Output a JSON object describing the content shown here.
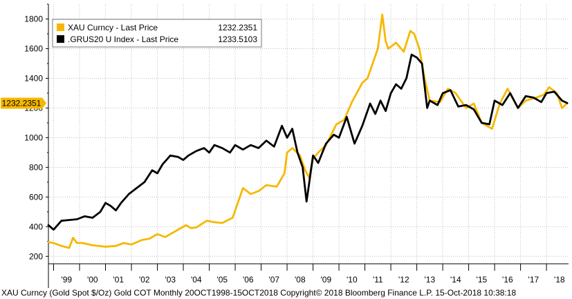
{
  "chart_data": {
    "type": "line",
    "title": "XAU Curncy (Gold Spot $/Oz) Gold COT Monthly 20OCT1998-15OCT2018",
    "ylim": [
      150,
      1900
    ],
    "y_ticks": [
      200,
      400,
      600,
      800,
      1000,
      1200,
      1400,
      1600,
      1800
    ],
    "y_tick_labels": [
      "200",
      "400",
      "600",
      "800",
      "1000",
      "1200",
      "1400",
      "1600",
      "1800"
    ],
    "x_tick_labels": [
      "'99",
      "'00",
      "'01",
      "'02",
      "'03",
      "'04",
      "'05",
      "'06",
      "'07",
      "'08",
      "'09",
      "'10",
      "'11",
      "'12",
      "'13",
      "'14",
      "'15",
      "'16",
      "'17",
      "'18"
    ],
    "x_range": [
      1998.8,
      2018.85
    ],
    "legend": [
      {
        "name": "XAU Curncy - Last Price",
        "value": "1232.2351",
        "color": "#f5b800"
      },
      {
        "name": ".GRUS20 U Index - Last Price",
        "value": "1233.5103",
        "color": "#000000"
      }
    ],
    "last_value_label": "1232.2351",
    "series": [
      {
        "name": "XAU Curncy - Last Price",
        "color": "#f5b800",
        "x": [
          1998.8,
          1999.0,
          1999.3,
          1999.6,
          1999.75,
          1999.9,
          2000.1,
          2000.5,
          2001.0,
          2001.4,
          2001.7,
          2002.0,
          2002.4,
          2002.7,
          2003.0,
          2003.3,
          2003.6,
          2003.9,
          2004.1,
          2004.3,
          2004.5,
          2004.9,
          2005.2,
          2005.5,
          2005.9,
          2006.1,
          2006.3,
          2006.6,
          2006.9,
          2007.2,
          2007.6,
          2007.9,
          2008.0,
          2008.2,
          2008.5,
          2008.7,
          2008.85,
          2009.0,
          2009.2,
          2009.5,
          2009.9,
          2010.2,
          2010.5,
          2010.9,
          2011.1,
          2011.3,
          2011.5,
          2011.67,
          2011.8,
          2011.9,
          2012.2,
          2012.5,
          2012.75,
          2012.9,
          2013.1,
          2013.3,
          2013.5,
          2013.9,
          2014.2,
          2014.5,
          2014.9,
          2015.2,
          2015.5,
          2015.9,
          2016.2,
          2016.5,
          2016.9,
          2017.2,
          2017.6,
          2017.9,
          2018.1,
          2018.4,
          2018.6,
          2018.8
        ],
        "values": [
          296,
          290,
          270,
          257,
          325,
          290,
          290,
          275,
          265,
          270,
          290,
          280,
          310,
          320,
          350,
          330,
          360,
          390,
          410,
          390,
          395,
          440,
          430,
          425,
          460,
          560,
          660,
          620,
          640,
          680,
          670,
          760,
          900,
          930,
          880,
          780,
          730,
          860,
          900,
          950,
          1090,
          1120,
          1240,
          1370,
          1400,
          1500,
          1600,
          1830,
          1650,
          1600,
          1640,
          1580,
          1720,
          1700,
          1600,
          1400,
          1250,
          1240,
          1330,
          1300,
          1200,
          1230,
          1100,
          1060,
          1230,
          1330,
          1200,
          1250,
          1270,
          1290,
          1340,
          1300,
          1200,
          1232
        ]
      },
      {
        "name": ".GRUS20 U Index - Last Price",
        "color": "#000000",
        "x": [
          1998.8,
          1999.0,
          1999.3,
          1999.6,
          1999.9,
          2000.2,
          2000.5,
          2000.8,
          2001.0,
          2001.2,
          2001.4,
          2001.6,
          2001.9,
          2002.2,
          2002.5,
          2002.8,
          2003.0,
          2003.2,
          2003.5,
          2003.8,
          2004.0,
          2004.2,
          2004.5,
          2004.8,
          2005.0,
          2005.2,
          2005.5,
          2005.8,
          2006.0,
          2006.3,
          2006.6,
          2006.9,
          2007.2,
          2007.5,
          2007.8,
          2008.0,
          2008.2,
          2008.4,
          2008.6,
          2008.75,
          2008.85,
          2009.0,
          2009.2,
          2009.5,
          2009.8,
          2010.0,
          2010.3,
          2010.6,
          2010.9,
          2011.2,
          2011.4,
          2011.6,
          2011.8,
          2012.0,
          2012.2,
          2012.4,
          2012.6,
          2012.8,
          2013.0,
          2013.2,
          2013.4,
          2013.5,
          2013.8,
          2014.0,
          2014.3,
          2014.6,
          2014.9,
          2015.2,
          2015.5,
          2015.8,
          2016.0,
          2016.3,
          2016.6,
          2016.9,
          2017.2,
          2017.5,
          2017.8,
          2018.0,
          2018.3,
          2018.6,
          2018.8
        ],
        "values": [
          410,
          380,
          440,
          445,
          450,
          470,
          460,
          500,
          560,
          540,
          510,
          560,
          620,
          660,
          700,
          780,
          760,
          820,
          880,
          870,
          850,
          880,
          910,
          930,
          900,
          950,
          930,
          900,
          950,
          920,
          950,
          930,
          980,
          940,
          1080,
          1000,
          1060,
          900,
          800,
          570,
          690,
          880,
          830,
          960,
          1020,
          1000,
          1140,
          960,
          1080,
          1230,
          1160,
          1250,
          1180,
          1300,
          1360,
          1330,
          1400,
          1560,
          1540,
          1500,
          1200,
          1250,
          1220,
          1300,
          1320,
          1210,
          1220,
          1190,
          1100,
          1090,
          1250,
          1220,
          1300,
          1200,
          1280,
          1270,
          1240,
          1300,
          1310,
          1250,
          1233
        ]
      }
    ]
  },
  "footer_text": "XAU Curncy (Gold Spot  $/Oz) Gold COT  Monthly 20OCT1998-15OCT2018  Copyright© 2018 Bloomberg Finance L.P.  15-Oct-2018 10:38:18"
}
